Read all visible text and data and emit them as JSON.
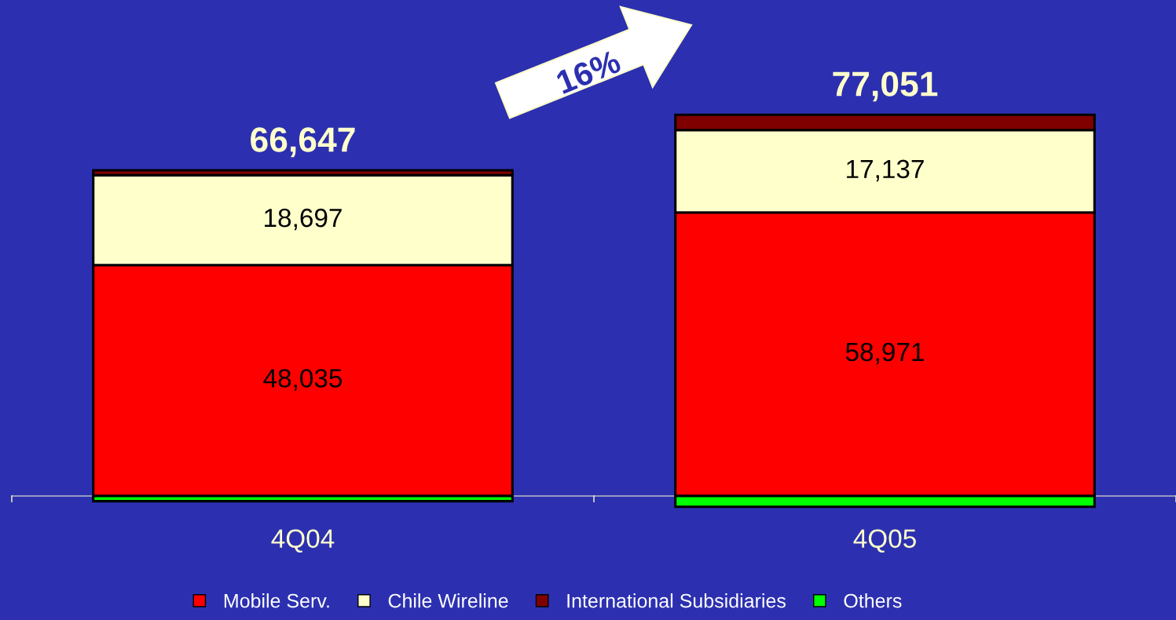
{
  "chart_data": {
    "type": "bar",
    "stacked": true,
    "categories": [
      "4Q04",
      "4Q05"
    ],
    "series": [
      {
        "name": "Mobile Serv.",
        "color": "#ff0000",
        "values": [
          48035,
          58971
        ],
        "value_labels": [
          "48,035",
          "58,971"
        ]
      },
      {
        "name": "Chile Wireline",
        "color": "#ffffcc",
        "values": [
          18697,
          17137
        ],
        "value_labels": [
          "18,697",
          "17,137"
        ]
      },
      {
        "name": "International Subsidiaries",
        "color": "#800000",
        "values": [
          1000,
          3200
        ]
      },
      {
        "name": "Others",
        "color": "#00ff00",
        "values": [
          -1085,
          -2257
        ]
      }
    ],
    "totals": [
      "66,647",
      "77,051"
    ],
    "annotations": [
      "16%"
    ],
    "legend": "bottom",
    "grid": false
  }
}
